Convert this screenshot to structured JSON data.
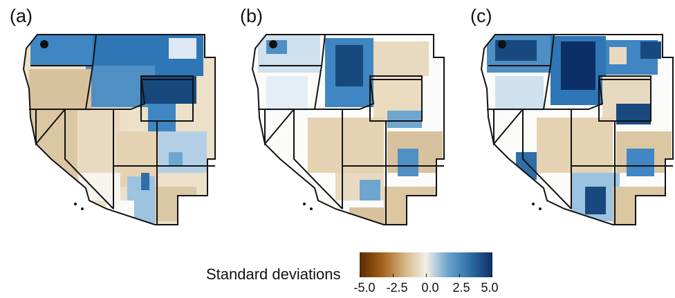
{
  "panels": [
    {
      "label": "(a)"
    },
    {
      "label": "(b)"
    },
    {
      "label": "(c)"
    }
  ],
  "legend": {
    "title": "Standard deviations",
    "ticks": [
      "-5.0",
      "-2.5",
      "0.0",
      "2.5",
      "5.0"
    ],
    "colors": [
      "#5a2a00",
      "#a3611a",
      "#d7bb8a",
      "#f2efe7",
      "#6fa6cf",
      "#2f6ea6",
      "#0b2f66"
    ]
  },
  "colors": {
    "tan": "#dcc7a3",
    "light_tan": "#ece0c9",
    "white": "#fbfbf9",
    "light_blue": "#9cc3e0",
    "mid_blue": "#4f8fc3",
    "dark_blue": "#17497f"
  }
}
